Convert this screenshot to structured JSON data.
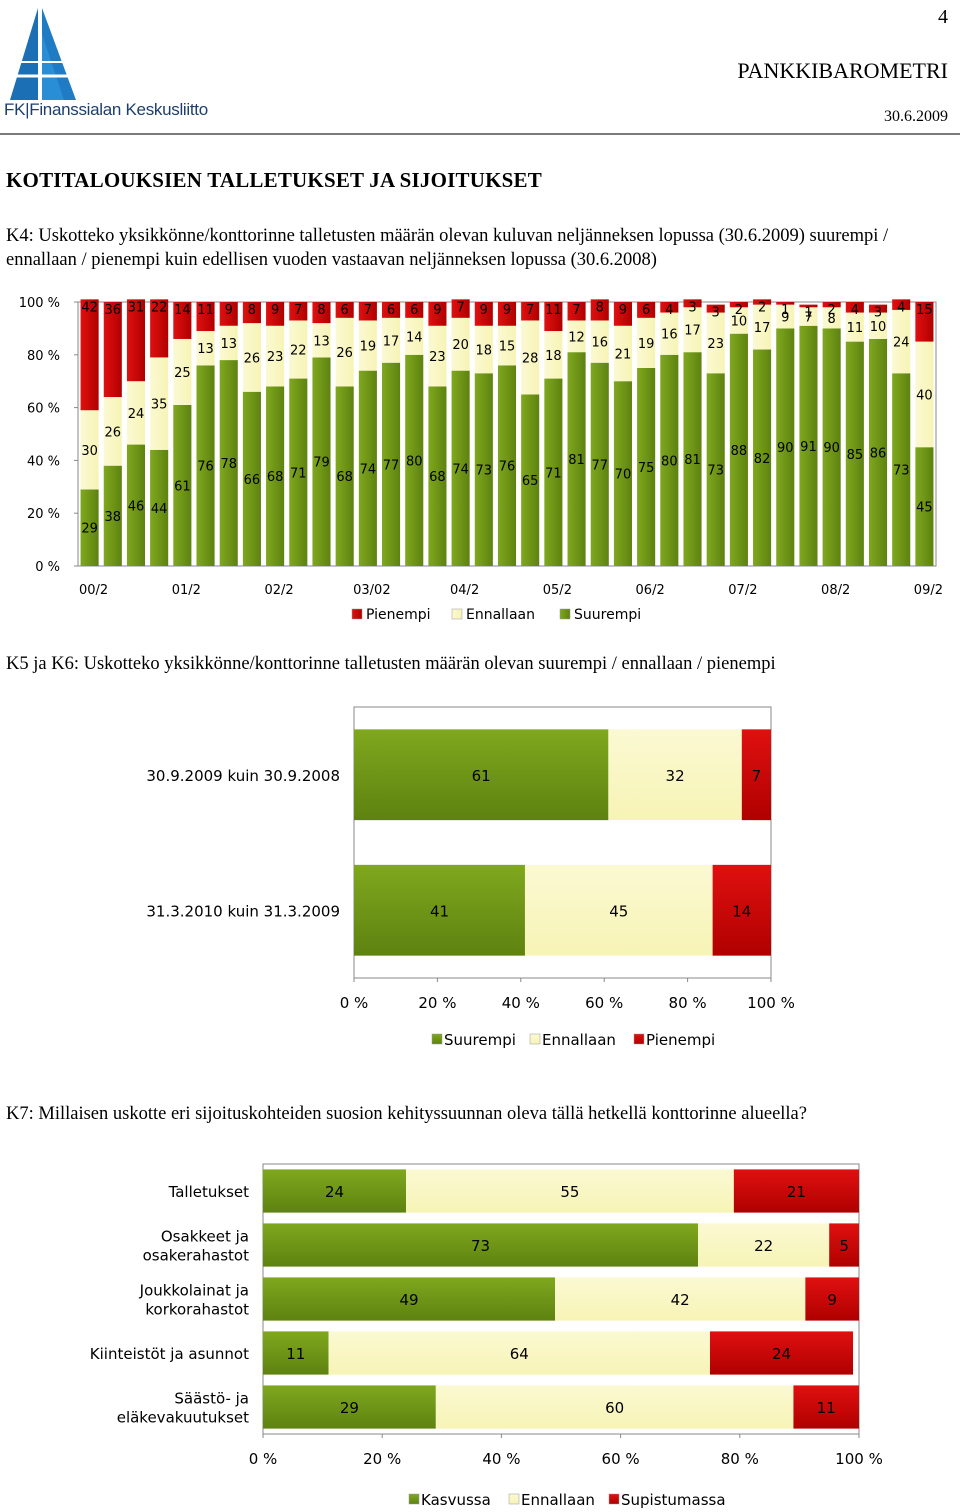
{
  "header": {
    "page_number": "4",
    "publication": "PANKKIBAROMETRI",
    "date": "30.6.2009",
    "logo_text": "FK|Finanssialan Keskusliitto"
  },
  "section_title": "KOTITALOUKSIEN TALLETUKSET JA SIJOITUKSET",
  "questions": {
    "k4": "K4: Uskotteko yksikkönne/konttorinne talletusten määrän olevan kuluvan neljänneksen lopussa (30.6.2009) suurempi / ennallaan / pienempi kuin edellisen vuoden vastaavan neljänneksen lopussa (30.6.2008)",
    "k5k6": "K5 ja K6: Uskotteko yksikkönne/konttorinne talletusten määrän olevan suurempi / ennallaan / pienempi",
    "k7": "K7: Millaisen uskotte eri sijoituskohteiden suosion kehityssuunnan oleva tällä hetkellä konttorinne alueella?"
  },
  "colors": {
    "green": "#7FA81E",
    "green_dark": "#5E8210",
    "yellow": "#F7F4B6",
    "red": "#E01010",
    "red_dark": "#B00000"
  },
  "chart_data": [
    {
      "id": "k4",
      "type": "bar",
      "stacked": true,
      "ylim": [
        0,
        100
      ],
      "yticks": [
        "0 %",
        "20 %",
        "40 %",
        "60 %",
        "80 %",
        "100 %"
      ],
      "x_tick_labels": [
        "00/2",
        "01/2",
        "02/2",
        "03/02",
        "04/2",
        "05/2",
        "06/2",
        "07/2",
        "08/2",
        "09/2"
      ],
      "legend": [
        "Pienempi",
        "Ennallaan",
        "Suurempi"
      ],
      "legend_position": "bottom",
      "series": [
        {
          "name": "Suurempi",
          "color_key": "green",
          "values": [
            29,
            38,
            46,
            44,
            61,
            76,
            78,
            66,
            68,
            71,
            79,
            68,
            74,
            77,
            80,
            68,
            74,
            73,
            76,
            65,
            71,
            81,
            77,
            70,
            75,
            80,
            81,
            73,
            88,
            82,
            90,
            91,
            90,
            85,
            86,
            73,
            45
          ]
        },
        {
          "name": "Ennallaan",
          "color_key": "yellow",
          "values": [
            30,
            26,
            24,
            35,
            25,
            13,
            13,
            26,
            23,
            22,
            13,
            26,
            19,
            17,
            14,
            23,
            20,
            18,
            15,
            28,
            18,
            12,
            16,
            21,
            19,
            16,
            17,
            23,
            10,
            17,
            9,
            7,
            8,
            11,
            10,
            24,
            40
          ]
        },
        {
          "name": "Pienempi",
          "color_key": "red",
          "values": [
            42,
            36,
            31,
            22,
            14,
            11,
            9,
            8,
            9,
            7,
            8,
            6,
            7,
            6,
            6,
            9,
            7,
            9,
            9,
            7,
            11,
            7,
            8,
            9,
            6,
            4,
            3,
            3,
            2,
            2,
            1,
            1,
            2,
            4,
            3,
            4,
            15
          ]
        }
      ]
    },
    {
      "id": "k5k6",
      "type": "bar",
      "orientation": "horizontal",
      "stacked": true,
      "xlim": [
        0,
        100
      ],
      "xticks": [
        "0 %",
        "20 %",
        "40 %",
        "60 %",
        "80 %",
        "100 %"
      ],
      "categories": [
        "30.9.2009 kuin 30.9.2008",
        "31.3.2010 kuin 31.3.2009"
      ],
      "legend": [
        "Suurempi",
        "Ennallaan",
        "Pienempi"
      ],
      "legend_position": "bottom",
      "series": [
        {
          "name": "Suurempi",
          "color_key": "green",
          "values": [
            61,
            41
          ]
        },
        {
          "name": "Ennallaan",
          "color_key": "yellow",
          "values": [
            32,
            45
          ]
        },
        {
          "name": "Pienempi",
          "color_key": "red",
          "values": [
            7,
            14
          ]
        }
      ]
    },
    {
      "id": "k7",
      "type": "bar",
      "orientation": "horizontal",
      "stacked": true,
      "xlim": [
        0,
        100
      ],
      "xticks": [
        "0 %",
        "20 %",
        "40 %",
        "60 %",
        "80 %",
        "100 %"
      ],
      "categories": [
        [
          "Talletukset"
        ],
        [
          "Osakkeet ja",
          "osakerahastot"
        ],
        [
          "Joukkolainat ja",
          "korkorahastot"
        ],
        [
          "Kiinteistöt ja asunnot"
        ],
        [
          "Säästö- ja",
          "eläkevakuutukset"
        ]
      ],
      "legend": [
        "Kasvussa",
        "Ennallaan",
        "Supistumassa"
      ],
      "legend_position": "bottom",
      "series": [
        {
          "name": "Kasvussa",
          "color_key": "green",
          "values": [
            24,
            73,
            49,
            11,
            29
          ]
        },
        {
          "name": "Ennallaan",
          "color_key": "yellow",
          "values": [
            55,
            22,
            42,
            64,
            60
          ]
        },
        {
          "name": "Supistumassa",
          "color_key": "red",
          "values": [
            21,
            5,
            9,
            24,
            11
          ]
        }
      ]
    }
  ]
}
